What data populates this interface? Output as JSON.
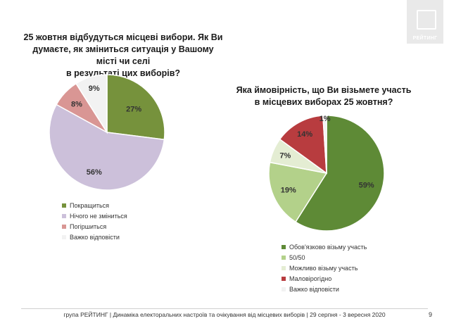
{
  "logo": {
    "text": "РЕЙТИНГ"
  },
  "chart_data": [
    {
      "type": "pie",
      "title_lines": [
        "25 жовтня відбудуться місцеві вибори. Як Ви",
        "думаєте, як зміниться ситуація у Вашому місті чи селі",
        "в результаті цих виборів?"
      ],
      "categories": [
        "Покращиться",
        "Нічого не зміниться",
        "Погіршиться",
        "Важко відповісти"
      ],
      "values": [
        27,
        56,
        8,
        9
      ],
      "labels": [
        "27%",
        "56%",
        "8%",
        "9%"
      ],
      "colors": [
        "#76923c",
        "#ccc0da",
        "#d99694",
        "#f2f2f2"
      ],
      "legend_position": "bottom"
    },
    {
      "type": "pie",
      "title_lines": [
        "Яка ймовірність, що Ви візьмете участь",
        "в місцевих виборах 25 жовтня?"
      ],
      "categories": [
        "Обов'язково візьму участь",
        "50/50",
        "Можливо візьму участь",
        "Маловірогідно",
        "Важко відповісти"
      ],
      "values": [
        59,
        19,
        7,
        14,
        1
      ],
      "labels": [
        "59%",
        "19%",
        "7%",
        "14%",
        "1%"
      ],
      "colors": [
        "#5e8a36",
        "#b3d18a",
        "#e4edd3",
        "#b83c3f",
        "#f2f2f2"
      ],
      "legend_position": "bottom"
    }
  ],
  "footer": {
    "text": "група РЕЙТИНГ | Динаміка електоральних настроїв та очікування від місцевих виборів | 29 серпня - 3 вересня 2020",
    "page_number": "9"
  }
}
